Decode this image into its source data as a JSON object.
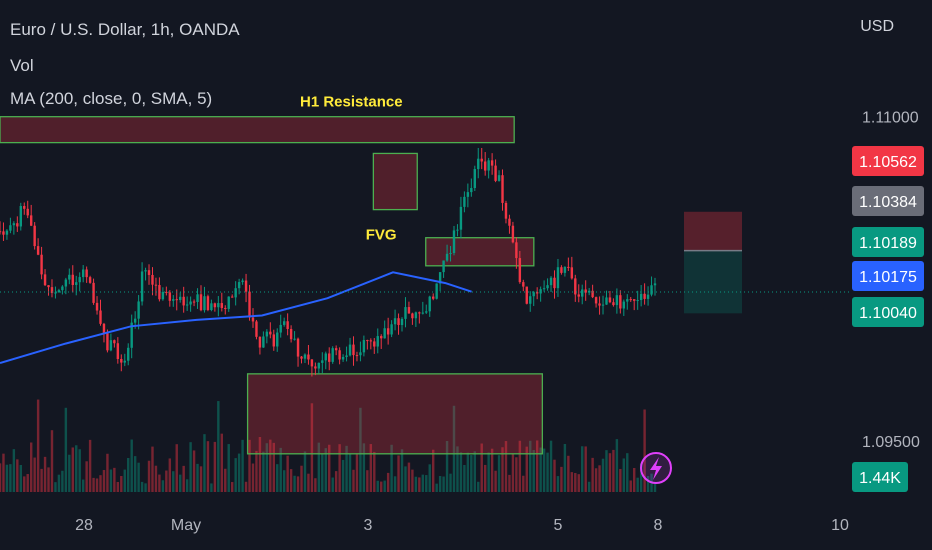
{
  "header": {
    "symbol_line": "Euro / U.S. Dollar, 1h, OANDA",
    "vol_label": "Vol",
    "ma_label": "MA (200, close, 0, SMA, 5)"
  },
  "currency": "USD",
  "chart_data": {
    "type": "candlestick",
    "x_ticks": [
      "28",
      "May",
      "3",
      "5",
      "8",
      "10"
    ],
    "y_ticks": [
      1.11,
      1.095
    ],
    "y_tick_labels": [
      "1.11000",
      "1.09500"
    ],
    "ylim": [
      1.0918,
      1.1154
    ],
    "price_seed": 20240501,
    "ma_points": [
      [
        0,
        1.0986
      ],
      [
        0.1,
        1.0995
      ],
      [
        0.2,
        1.1003
      ],
      [
        0.3,
        1.1006
      ],
      [
        0.4,
        1.1008
      ],
      [
        0.5,
        1.1016
      ],
      [
        0.6,
        1.1028
      ],
      [
        0.68,
        1.1023
      ],
      [
        0.72,
        1.1019
      ]
    ],
    "price_anchors": [
      [
        0,
        1.1047
      ],
      [
        0.04,
        1.1057
      ],
      [
        0.07,
        1.1022
      ],
      [
        0.1,
        1.1024
      ],
      [
        0.13,
        1.1031
      ],
      [
        0.16,
        1.0996
      ],
      [
        0.19,
        1.0988
      ],
      [
        0.22,
        1.103
      ],
      [
        0.25,
        1.1017
      ],
      [
        0.28,
        1.1016
      ],
      [
        0.33,
        1.1012
      ],
      [
        0.37,
        1.102
      ],
      [
        0.4,
        1.0995
      ],
      [
        0.44,
        1.1002
      ],
      [
        0.47,
        1.0985
      ],
      [
        0.52,
        1.099
      ],
      [
        0.56,
        1.0995
      ],
      [
        0.59,
        1.1003
      ],
      [
        0.63,
        1.101
      ],
      [
        0.66,
        1.1016
      ],
      [
        0.7,
        1.1051
      ],
      [
        0.73,
        1.108
      ],
      [
        0.76,
        1.1073
      ],
      [
        0.8,
        1.1016
      ],
      [
        0.83,
        1.1018
      ],
      [
        0.86,
        1.103
      ],
      [
        0.89,
        1.1016
      ],
      [
        0.92,
        1.1016
      ],
      [
        0.95,
        1.1015
      ],
      [
        0.97,
        1.1015
      ],
      [
        1.0,
        1.1019
      ]
    ],
    "zones": [
      {
        "label": "H1 Resistance",
        "top": 1.11,
        "bottom": 1.1088,
        "x0": 0.0,
        "x1": 0.785
      },
      {
        "label": "",
        "top": 1.1083,
        "bottom": 1.1057,
        "x0": 0.57,
        "x1": 0.637
      },
      {
        "label": "FVG",
        "top": 1.1044,
        "bottom": 1.1031,
        "x0": 0.65,
        "x1": 0.815
      },
      {
        "label": "",
        "top": 1.0981,
        "bottom": 1.0944,
        "x0": 0.378,
        "x1": 0.828
      }
    ],
    "position": {
      "sl_top": 1.1056,
      "entry": 1.1038,
      "tp_bottom": 1.1009
    },
    "price_labels": [
      {
        "text": "1.10562",
        "value": 1.10562,
        "color": "#f23645"
      },
      {
        "text": "1.10384",
        "value": 1.10384,
        "color": "#6a6d78"
      },
      {
        "text": "1.10189",
        "value": 1.10189,
        "color": "#089981"
      },
      {
        "text": "1.10175",
        "value": 1.10175,
        "color": "#2962ff"
      },
      {
        "text": "1.10040",
        "value": 1.1004,
        "color": "#089981"
      }
    ],
    "volume_badge": {
      "text": "1.44K",
      "color": "#089981"
    },
    "up_color": "#089981",
    "down_color": "#f23645",
    "ma_color": "#2962ff"
  }
}
